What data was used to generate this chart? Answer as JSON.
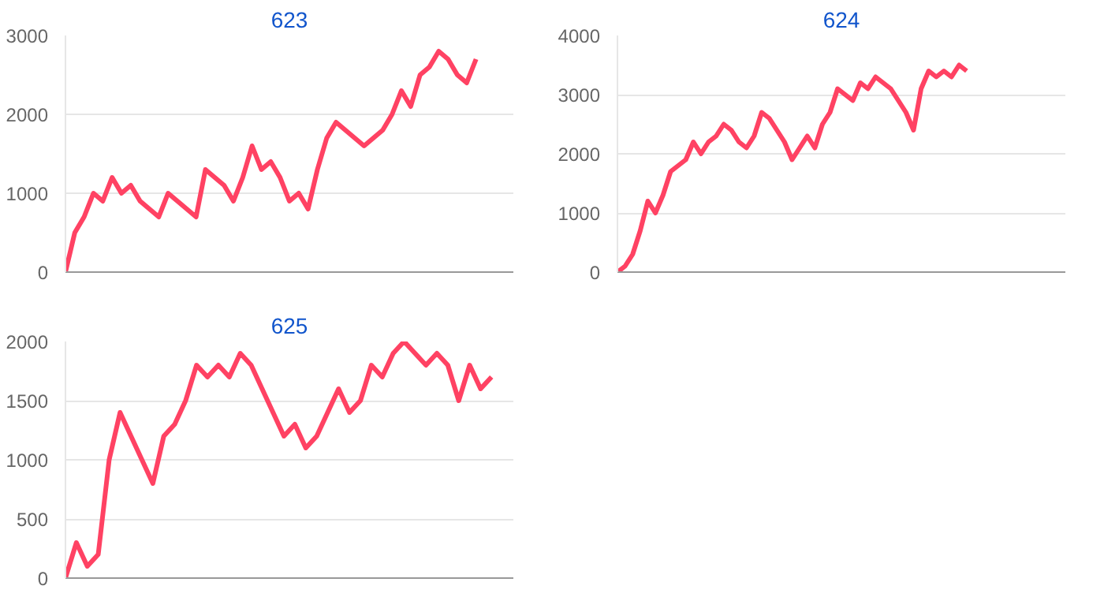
{
  "chart_data": [
    {
      "type": "line",
      "title": "623",
      "categories": [
        null,
        null,
        null,
        null,
        null,
        null,
        null,
        null,
        null,
        null,
        null,
        null,
        null,
        null,
        null,
        null,
        null,
        null,
        null,
        null,
        null,
        null,
        null,
        null,
        null,
        null,
        null,
        null,
        null,
        null,
        null,
        null,
        null,
        null,
        null,
        null,
        null,
        null,
        null,
        null,
        null,
        null,
        null,
        null,
        null,
        null,
        null,
        null,
        null
      ],
      "series": [
        {
          "color": "#ff4263",
          "values": [
            0,
            500,
            700,
            1000,
            900,
            1200,
            1000,
            1100,
            900,
            800,
            700,
            1000,
            900,
            800,
            700,
            1300,
            1200,
            1100,
            900,
            1200,
            1600,
            1300,
            1400,
            1200,
            900,
            1000,
            800,
            1300,
            1700,
            1900,
            1800,
            1700,
            1600,
            1700,
            1800,
            2000,
            2300,
            2100,
            2500,
            2600,
            2800,
            2700,
            2500,
            2400,
            2700,
            null,
            null,
            null,
            null
          ]
        }
      ],
      "ylim": [
        0,
        3000
      ],
      "yticks": [
        0,
        1000,
        2000,
        3000
      ],
      "grid": "y",
      "tick_labels": "y"
    },
    {
      "type": "line",
      "title": "624",
      "categories": [
        null,
        null,
        null,
        null,
        null,
        null,
        null,
        null,
        null,
        null,
        null,
        null,
        null,
        null,
        null,
        null,
        null,
        null,
        null,
        null,
        null,
        null,
        null,
        null,
        null,
        null,
        null,
        null,
        null,
        null,
        null,
        null,
        null,
        null,
        null,
        null,
        null,
        null,
        null,
        null,
        null,
        null,
        null,
        null,
        null,
        null,
        null,
        null,
        null,
        null,
        null,
        null,
        null,
        null,
        null,
        null,
        null,
        null,
        null,
        null
      ],
      "series": [
        {
          "color": "#ff4263",
          "values": [
            0,
            100,
            300,
            700,
            1200,
            1000,
            1300,
            1700,
            1800,
            1900,
            2200,
            2000,
            2200,
            2300,
            2500,
            2400,
            2200,
            2100,
            2300,
            2700,
            2600,
            2400,
            2200,
            1900,
            2100,
            2300,
            2100,
            2500,
            2700,
            3100,
            3000,
            2900,
            3200,
            3100,
            3300,
            3200,
            3100,
            2900,
            2700,
            2400,
            3100,
            3400,
            3300,
            3400,
            3300,
            3500,
            3400,
            null,
            null,
            null,
            null,
            null,
            null,
            null,
            null,
            null,
            null,
            null,
            null,
            null
          ]
        }
      ],
      "ylim": [
        0,
        4000
      ],
      "yticks": [
        0,
        1000,
        2000,
        3000,
        4000
      ],
      "grid": "y",
      "tick_labels": "y"
    },
    {
      "type": "line",
      "title": "625",
      "categories": [
        null,
        null,
        null,
        null,
        null,
        null,
        null,
        null,
        null,
        null,
        null,
        null,
        null,
        null,
        null,
        null,
        null,
        null,
        null,
        null,
        null,
        null,
        null,
        null,
        null,
        null,
        null,
        null,
        null,
        null,
        null,
        null,
        null,
        null,
        null,
        null,
        null,
        null,
        null,
        null,
        null,
        null
      ],
      "series": [
        {
          "color": "#ff4263",
          "values": [
            0,
            300,
            100,
            200,
            1000,
            1400,
            1200,
            1000,
            800,
            1200,
            1300,
            1500,
            1800,
            1700,
            1800,
            1700,
            1900,
            1800,
            1600,
            1400,
            1200,
            1300,
            1100,
            1200,
            1400,
            1600,
            1400,
            1500,
            1800,
            1700,
            1900,
            2000,
            1900,
            1800,
            1900,
            1800,
            1500,
            1800,
            1600,
            1700,
            null,
            null
          ]
        }
      ],
      "ylim": [
        0,
        2000
      ],
      "yticks": [
        0,
        500,
        1000,
        1500,
        2000
      ],
      "grid": "y",
      "tick_labels": "y"
    }
  ]
}
